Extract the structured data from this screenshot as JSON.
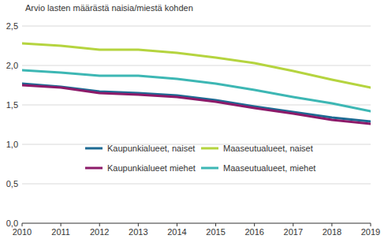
{
  "chart_data": {
    "type": "line",
    "title": "Arvio lasten määrästä naisia/miestä kohden",
    "x": [
      2010,
      2011,
      2012,
      2013,
      2014,
      2015,
      2016,
      2017,
      2018,
      2019
    ],
    "xlim": [
      2010,
      2019
    ],
    "xticks": [
      2010,
      2011,
      2012,
      2013,
      2014,
      2015,
      2016,
      2017,
      2018,
      2019
    ],
    "ylim": [
      0,
      2.5
    ],
    "yticks": [
      {
        "value": 0,
        "label": "0,0"
      },
      {
        "value": 0.5,
        "label": "0,5"
      },
      {
        "value": 1,
        "label": "1,0"
      },
      {
        "value": 1.5,
        "label": "1,5"
      },
      {
        "value": 2,
        "label": "2,0"
      },
      {
        "value": 2.5,
        "label": "2,5"
      }
    ],
    "grid": true,
    "legend": "bottom",
    "series": [
      {
        "name": "Kaupunkialueet, naiset",
        "color": "#1d6a93",
        "values": [
          1.77,
          1.73,
          1.67,
          1.65,
          1.62,
          1.56,
          1.48,
          1.41,
          1.34,
          1.29
        ]
      },
      {
        "name": "Kaupunkialueet miehet",
        "color": "#8c1a69",
        "values": [
          1.75,
          1.72,
          1.65,
          1.63,
          1.6,
          1.54,
          1.46,
          1.39,
          1.31,
          1.26
        ]
      },
      {
        "name": "Maaseutualueet, naiset",
        "color": "#b5d43f",
        "values": [
          2.28,
          2.25,
          2.2,
          2.2,
          2.16,
          2.1,
          2.03,
          1.93,
          1.82,
          1.72
        ]
      },
      {
        "name": "Maaseutualueet, miehet",
        "color": "#3db7b4",
        "values": [
          1.94,
          1.91,
          1.87,
          1.87,
          1.83,
          1.77,
          1.69,
          1.6,
          1.52,
          1.42
        ]
      }
    ]
  }
}
